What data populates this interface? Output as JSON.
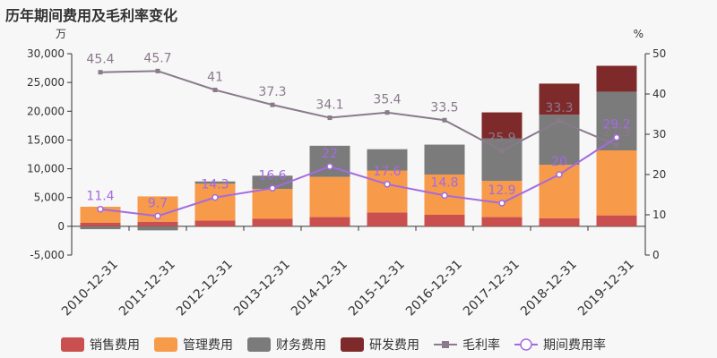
{
  "title": "历年期间费用及毛利率变化",
  "chart_data": {
    "type": "bar",
    "stacked": true,
    "left_unit": "万",
    "right_unit": "%",
    "left_ylim": [
      -5000,
      30000
    ],
    "left_ticks": [
      -5000,
      0,
      5000,
      10000,
      15000,
      20000,
      25000,
      30000
    ],
    "left_tick_labels": [
      "-5,000",
      "0",
      "5,000",
      "10,000",
      "15,000",
      "20,000",
      "25,000",
      "30,000"
    ],
    "right_ylim": [
      0,
      50
    ],
    "right_ticks": [
      0,
      10,
      20,
      30,
      40,
      50
    ],
    "right_tick_labels": [
      "0",
      "10",
      "20",
      "30",
      "40",
      "50"
    ],
    "categories": [
      "2010-12-31",
      "2011-12-31",
      "2012-12-31",
      "2013-12-31",
      "2014-12-31",
      "2015-12-31",
      "2016-12-31",
      "2017-12-31",
      "2018-12-31",
      "2019-12-31"
    ],
    "bar_series": [
      {
        "name": "销售费用",
        "color": "#c9504f",
        "values": [
          600,
          800,
          1000,
          1300,
          1600,
          2400,
          2000,
          1600,
          1400,
          1900
        ]
      },
      {
        "name": "管理费用",
        "color": "#f79a4a",
        "values": [
          2800,
          4400,
          6400,
          5200,
          7000,
          7300,
          7000,
          6300,
          9300,
          11300
        ]
      },
      {
        "name": "财务费用",
        "color": "#7b7b7b",
        "values": [
          -500,
          -700,
          400,
          2300,
          5400,
          3700,
          5200,
          7400,
          8700,
          10200
        ]
      },
      {
        "name": "研发费用",
        "color": "#7e2a2a",
        "values": [
          0,
          0,
          0,
          0,
          0,
          0,
          0,
          4500,
          5400,
          4500
        ]
      }
    ],
    "line_series": [
      {
        "name": "毛利率",
        "color": "#8a7a8c",
        "marker": "square",
        "values": [
          45.4,
          45.7,
          41,
          37.3,
          34.1,
          35.4,
          33.5,
          25.9,
          33.3,
          27.3
        ],
        "labels": [
          "45.4",
          "45.7",
          "41",
          "37.3",
          "34.1",
          "35.4",
          "33.5",
          "25.9",
          "33.3",
          "27.3"
        ]
      },
      {
        "name": "期间费用率",
        "color": "#a36be0",
        "marker": "circle",
        "values": [
          11.4,
          9.7,
          14.3,
          16.6,
          22,
          17.6,
          14.8,
          12.9,
          20,
          29.2
        ],
        "labels": [
          "11.4",
          "9.7",
          "14.3",
          "16.6",
          "22",
          "17.6",
          "14.8",
          "12.9",
          "20",
          "29.2"
        ]
      }
    ],
    "legend_position": "bottom",
    "grid": false
  }
}
